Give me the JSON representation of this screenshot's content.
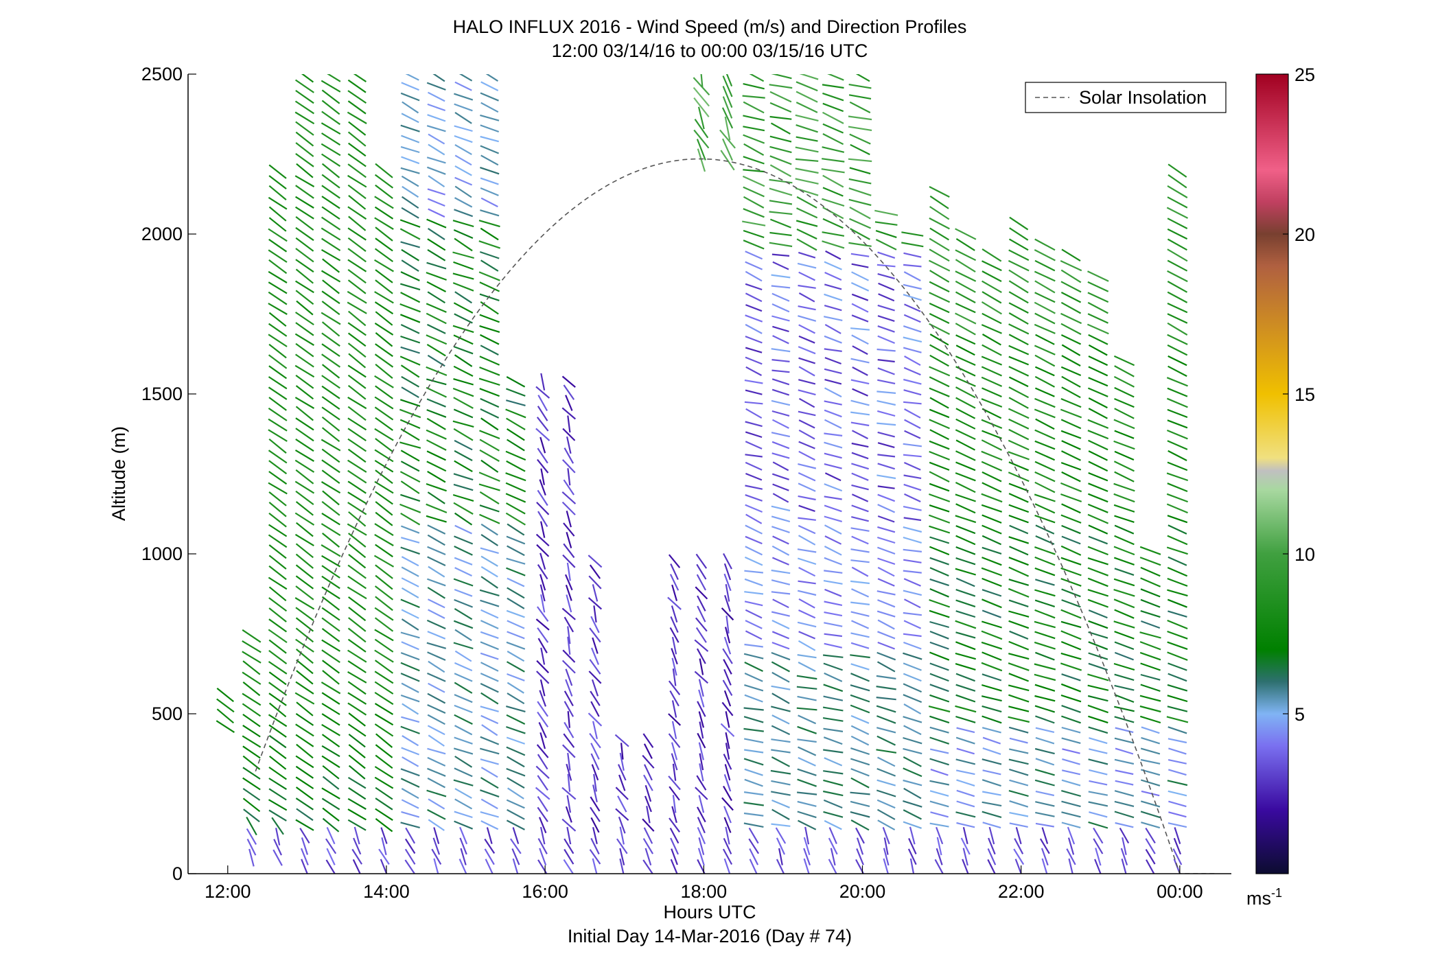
{
  "chart_data": {
    "type": "wind-barb-profile",
    "title": "HALO INFLUX 2016 - Wind Speed (m/s) and Direction Profiles",
    "subtitle": "12:00 03/14/16 to 00:00 03/15/16  UTC",
    "xlabel": "Hours UTC",
    "xlabel2": "Initial Day 14-Mar-2016 (Day # 74)",
    "ylabel": "Altitude (m)",
    "xlim": [
      11.5,
      24.65
    ],
    "ylim": [
      0,
      2500
    ],
    "x_ticks": [
      12,
      14,
      16,
      18,
      20,
      22,
      24
    ],
    "x_tick_labels": [
      "12:00",
      "14:00",
      "16:00",
      "18:00",
      "20:00",
      "22:00",
      "00:00"
    ],
    "y_ticks": [
      0,
      500,
      1000,
      1500,
      2000,
      2500
    ],
    "y_tick_labels": [
      "0",
      "500",
      "1000",
      "1500",
      "2000",
      "2500"
    ],
    "legend": {
      "label": "Solar Insolation",
      "style": "dashed",
      "color": "#555555",
      "position": "top-right"
    },
    "colorbar": {
      "min": 0,
      "max": 25,
      "ticks": [
        5,
        10,
        15,
        20,
        25
      ],
      "tick_labels": [
        "5",
        "10",
        "15",
        "20",
        "25"
      ],
      "unit_label": "ms",
      "unit_exponent": "-1",
      "colormap": [
        [
          0,
          "#0c0c30"
        ],
        [
          2,
          "#3a0aa0"
        ],
        [
          4,
          "#7a70f0"
        ],
        [
          5,
          "#80b4f4"
        ],
        [
          6,
          "#2e7070"
        ],
        [
          7,
          "#008000"
        ],
        [
          10,
          "#40a040"
        ],
        [
          12,
          "#a8d8a0"
        ],
        [
          12.6,
          "#c0c0c0"
        ],
        [
          13,
          "#f0e080"
        ],
        [
          15,
          "#f0c000"
        ],
        [
          17,
          "#d09020"
        ],
        [
          19,
          "#b06040"
        ],
        [
          20,
          "#784030"
        ],
        [
          21,
          "#c04060"
        ],
        [
          22,
          "#f06088"
        ],
        [
          25,
          "#a00020"
        ]
      ]
    },
    "solar_insolation": {
      "sunrise_hour": 12.35,
      "sunset_hour": 24.45,
      "peak_hour": 17.95,
      "peak_altitude": 2235
    },
    "profile_times": [
      11.97,
      12.3,
      12.63,
      12.97,
      13.3,
      13.63,
      13.97,
      14.3,
      14.63,
      14.97,
      15.3,
      15.63,
      15.97,
      16.3,
      16.63,
      16.97,
      17.3,
      17.63,
      17.97,
      18.3,
      18.63,
      18.97,
      19.3,
      19.63,
      19.97,
      20.3,
      20.63,
      20.97,
      21.3,
      21.63,
      21.97,
      22.3,
      22.63,
      22.97,
      23.3,
      23.63,
      23.97
    ],
    "profile_top_altitude": [
      560,
      770,
      2200,
      2500,
      2500,
      2500,
      2230,
      2500,
      2500,
      2500,
      2500,
      2500,
      2500,
      2500,
      2500,
      2380,
      2300,
      2270,
      2500,
      2500,
      2500,
      2500,
      2500,
      2500,
      2500,
      2080,
      2030,
      2150,
      2030,
      1960,
      2050,
      1990,
      1950,
      1870,
      1620,
      1010,
      2220
    ],
    "profile_bottom_altitude": [
      460,
      50,
      50,
      20,
      20,
      20,
      20,
      20,
      20,
      20,
      20,
      20,
      20,
      20,
      20,
      20,
      20,
      20,
      20,
      20,
      20,
      20,
      20,
      20,
      20,
      20,
      20,
      20,
      20,
      20,
      20,
      20,
      20,
      20,
      20,
      20,
      20
    ],
    "data_gaps": [
      {
        "from_hour": 15.6,
        "to_hour": 17.8,
        "from_altitude": 1550,
        "to_altitude": 2500
      },
      {
        "from_hour": 16.4,
        "to_hour": 18.3,
        "from_altitude": 1000,
        "to_altitude": 2200
      },
      {
        "from_hour": 16.8,
        "to_hour": 17.3,
        "from_altitude": 420,
        "to_altitude": 1000
      }
    ],
    "level_spacing_m": 33
  }
}
